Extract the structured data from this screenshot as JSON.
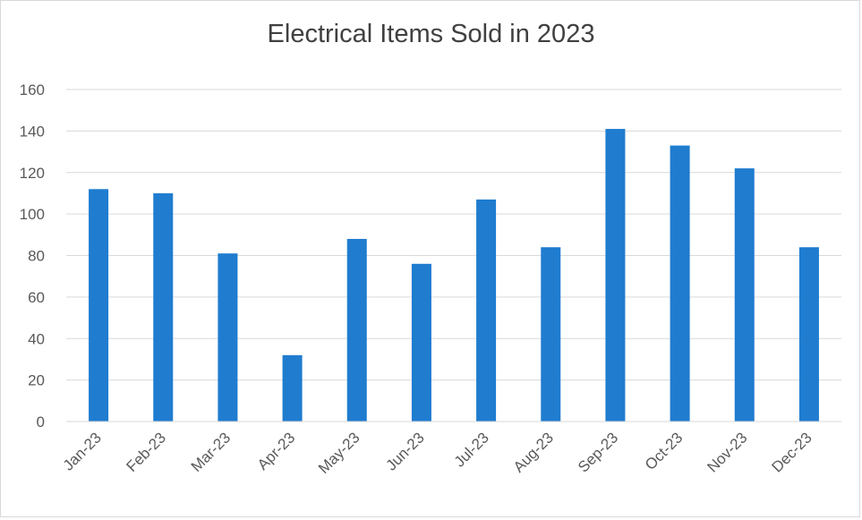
{
  "chart_data": {
    "type": "bar",
    "title": "Electrical Items Sold in 2023",
    "xlabel": "",
    "ylabel": "",
    "categories": [
      "Jan-23",
      "Feb-23",
      "Mar-23",
      "Apr-23",
      "May-23",
      "Jun-23",
      "Jul-23",
      "Aug-23",
      "Sep-23",
      "Oct-23",
      "Nov-23",
      "Dec-23"
    ],
    "values": [
      112,
      110,
      81,
      32,
      88,
      76,
      107,
      84,
      141,
      133,
      122,
      84
    ],
    "ylim": [
      0,
      160
    ],
    "yticks": [
      "0",
      "20",
      "40",
      "60",
      "80",
      "100",
      "120",
      "140",
      "160"
    ],
    "grid": true,
    "legend": "none",
    "bar_color": "#1f7ccf",
    "grid_color": "#d9d9d9"
  }
}
